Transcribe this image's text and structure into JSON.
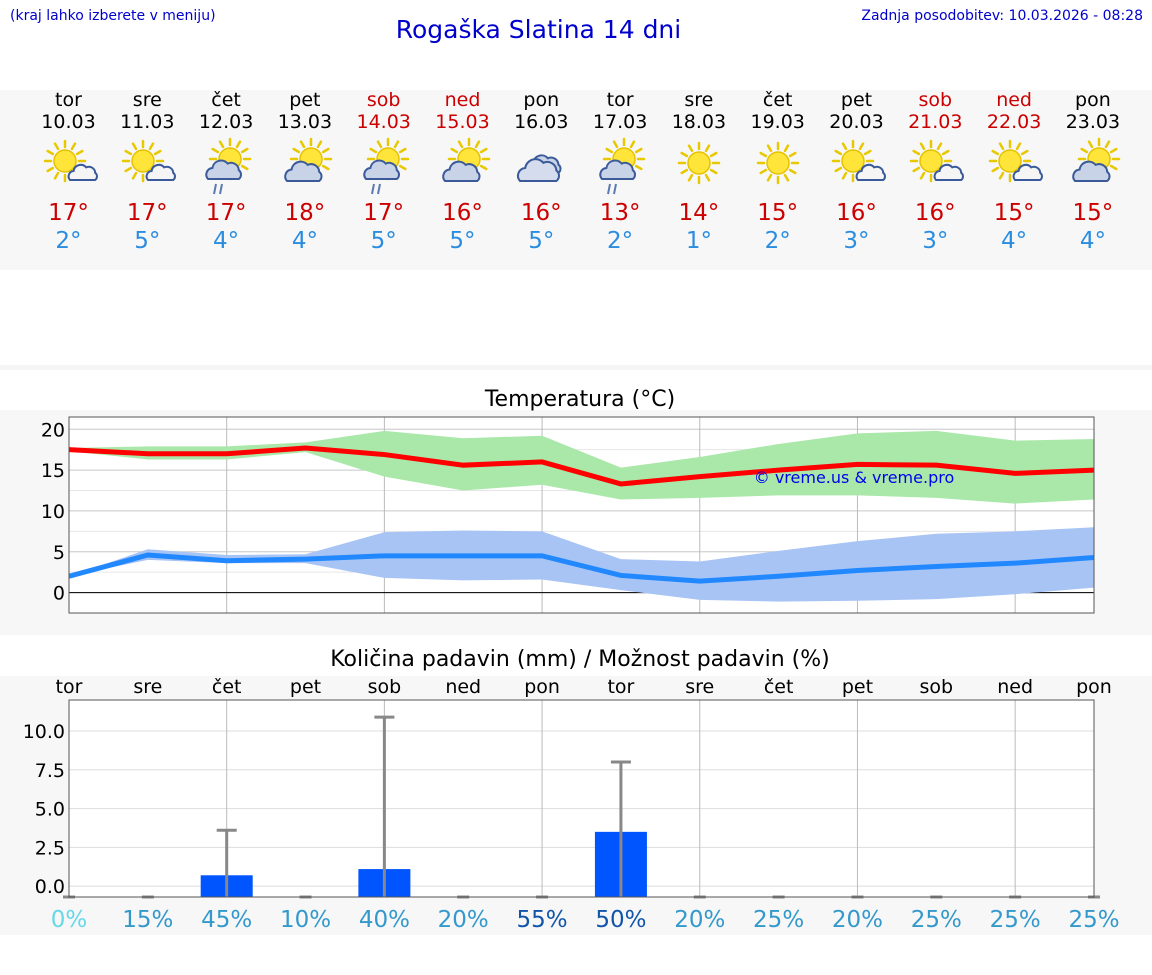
{
  "header": {
    "menu_hint": "(kraj lahko izberete v meniju)",
    "title": "Rogaška Slatina 14 dni",
    "updated": "Zadnja posodobitev: 10.03.2026 - 08:28"
  },
  "days": [
    {
      "name": "tor",
      "date": "10.03",
      "icon": "sun-cloud-icon",
      "max": "17°",
      "min": "2°",
      "weekend": false
    },
    {
      "name": "sre",
      "date": "11.03",
      "icon": "sun-cloud-icon",
      "max": "17°",
      "min": "5°",
      "weekend": false
    },
    {
      "name": "čet",
      "date": "12.03",
      "icon": "sun-cloud-rain-icon",
      "max": "17°",
      "min": "4°",
      "weekend": false
    },
    {
      "name": "pet",
      "date": "13.03",
      "icon": "sun-big-cloud-icon",
      "max": "18°",
      "min": "4°",
      "weekend": false
    },
    {
      "name": "sob",
      "date": "14.03",
      "icon": "sun-cloud-rain-icon",
      "max": "17°",
      "min": "5°",
      "weekend": true
    },
    {
      "name": "ned",
      "date": "15.03",
      "icon": "sun-big-cloud-icon",
      "max": "16°",
      "min": "5°",
      "weekend": true
    },
    {
      "name": "pon",
      "date": "16.03",
      "icon": "cloudy-icon",
      "max": "16°",
      "min": "5°",
      "weekend": false
    },
    {
      "name": "tor",
      "date": "17.03",
      "icon": "sun-cloud-rain-icon",
      "max": "13°",
      "min": "2°",
      "weekend": false
    },
    {
      "name": "sre",
      "date": "18.03",
      "icon": "sun-icon",
      "max": "14°",
      "min": "1°",
      "weekend": false
    },
    {
      "name": "čet",
      "date": "19.03",
      "icon": "sun-icon",
      "max": "15°",
      "min": "2°",
      "weekend": false
    },
    {
      "name": "pet",
      "date": "20.03",
      "icon": "sun-cloud-icon",
      "max": "16°",
      "min": "3°",
      "weekend": false
    },
    {
      "name": "sob",
      "date": "21.03",
      "icon": "sun-cloud-icon",
      "max": "16°",
      "min": "3°",
      "weekend": true
    },
    {
      "name": "ned",
      "date": "22.03",
      "icon": "sun-cloud-icon",
      "max": "15°",
      "min": "4°",
      "weekend": true
    },
    {
      "name": "pon",
      "date": "23.03",
      "icon": "sun-big-cloud-icon",
      "max": "15°",
      "min": "4°",
      "weekend": false
    }
  ],
  "colors": {
    "max": "#ff0000",
    "min": "#2288ff",
    "max_band": "#a9e8a9",
    "min_band": "#a8c4f5",
    "bar": "#0055ff",
    "whisker": "#888888"
  },
  "chart_data": [
    {
      "type": "line",
      "title": "Temperatura (°C)",
      "watermark": "© vreme.us & vreme.pro",
      "x": [
        0,
        1,
        2,
        3,
        4,
        5,
        6,
        7,
        8,
        9,
        10,
        11,
        12,
        13
      ],
      "ylim": [
        -2.5,
        21.5
      ],
      "yticks": [
        0,
        5,
        10,
        15,
        20
      ],
      "series": [
        {
          "name": "max",
          "values": [
            17.5,
            17,
            17,
            17.7,
            16.9,
            15.6,
            16,
            13.3,
            14.2,
            15,
            15.7,
            15.6,
            14.6,
            15
          ]
        },
        {
          "name": "min",
          "values": [
            2,
            4.6,
            3.9,
            4.1,
            4.5,
            4.5,
            4.5,
            2.1,
            1.4,
            2,
            2.7,
            3.2,
            3.6,
            4.3
          ]
        }
      ],
      "bands": [
        {
          "name": "max_range",
          "low": [
            17.3,
            16.3,
            16.3,
            17.2,
            14.2,
            12.5,
            13.2,
            11.4,
            11.6,
            11.9,
            11.9,
            11.6,
            10.9,
            11.4
          ],
          "high": [
            17.7,
            17.9,
            17.9,
            18.4,
            19.8,
            18.9,
            19.2,
            15.3,
            16.6,
            18.2,
            19.5,
            19.8,
            18.6,
            18.8
          ]
        },
        {
          "name": "min_range",
          "low": [
            2,
            4,
            3.6,
            3.6,
            1.8,
            1.5,
            1.6,
            0.3,
            -0.9,
            -1.1,
            -1,
            -0.8,
            -0.2,
            0.6
          ],
          "high": [
            2,
            5.3,
            4.6,
            4.7,
            7.4,
            7.6,
            7.5,
            4.1,
            3.8,
            5.1,
            6.3,
            7.2,
            7.5,
            8
          ]
        }
      ]
    },
    {
      "type": "bar",
      "title": "Količina padavin (mm) / Možnost padavin (%)",
      "categories": [
        "tor",
        "sre",
        "čet",
        "pet",
        "sob",
        "ned",
        "pon",
        "tor",
        "sre",
        "čet",
        "pet",
        "sob",
        "ned",
        "pon"
      ],
      "ylim": [
        -0.7,
        12
      ],
      "yticks": [
        0,
        2.5,
        5,
        7.5,
        10
      ],
      "ytick_labels": [
        "0.0",
        "2.5",
        "5.0",
        "7.5",
        "10.0"
      ],
      "values": [
        0,
        0,
        0.7,
        0,
        1.1,
        0,
        0,
        3.5,
        0,
        0,
        0,
        0,
        0,
        0
      ],
      "whisker_max": [
        0,
        0,
        3.6,
        0,
        10.9,
        0,
        0,
        8,
        0,
        0,
        0,
        0,
        0,
        0
      ],
      "probability": [
        "0%",
        "15%",
        "45%",
        "10%",
        "40%",
        "20%",
        "55%",
        "50%",
        "20%",
        "25%",
        "20%",
        "25%",
        "25%",
        "25%"
      ],
      "probability_colors": [
        "#66d8e8",
        "#3399cc",
        "#3399cc",
        "#3399cc",
        "#3399cc",
        "#3399cc",
        "#1155aa",
        "#1155aa",
        "#3399cc",
        "#3399cc",
        "#3399cc",
        "#3399cc",
        "#3399cc",
        "#3399cc"
      ]
    }
  ]
}
